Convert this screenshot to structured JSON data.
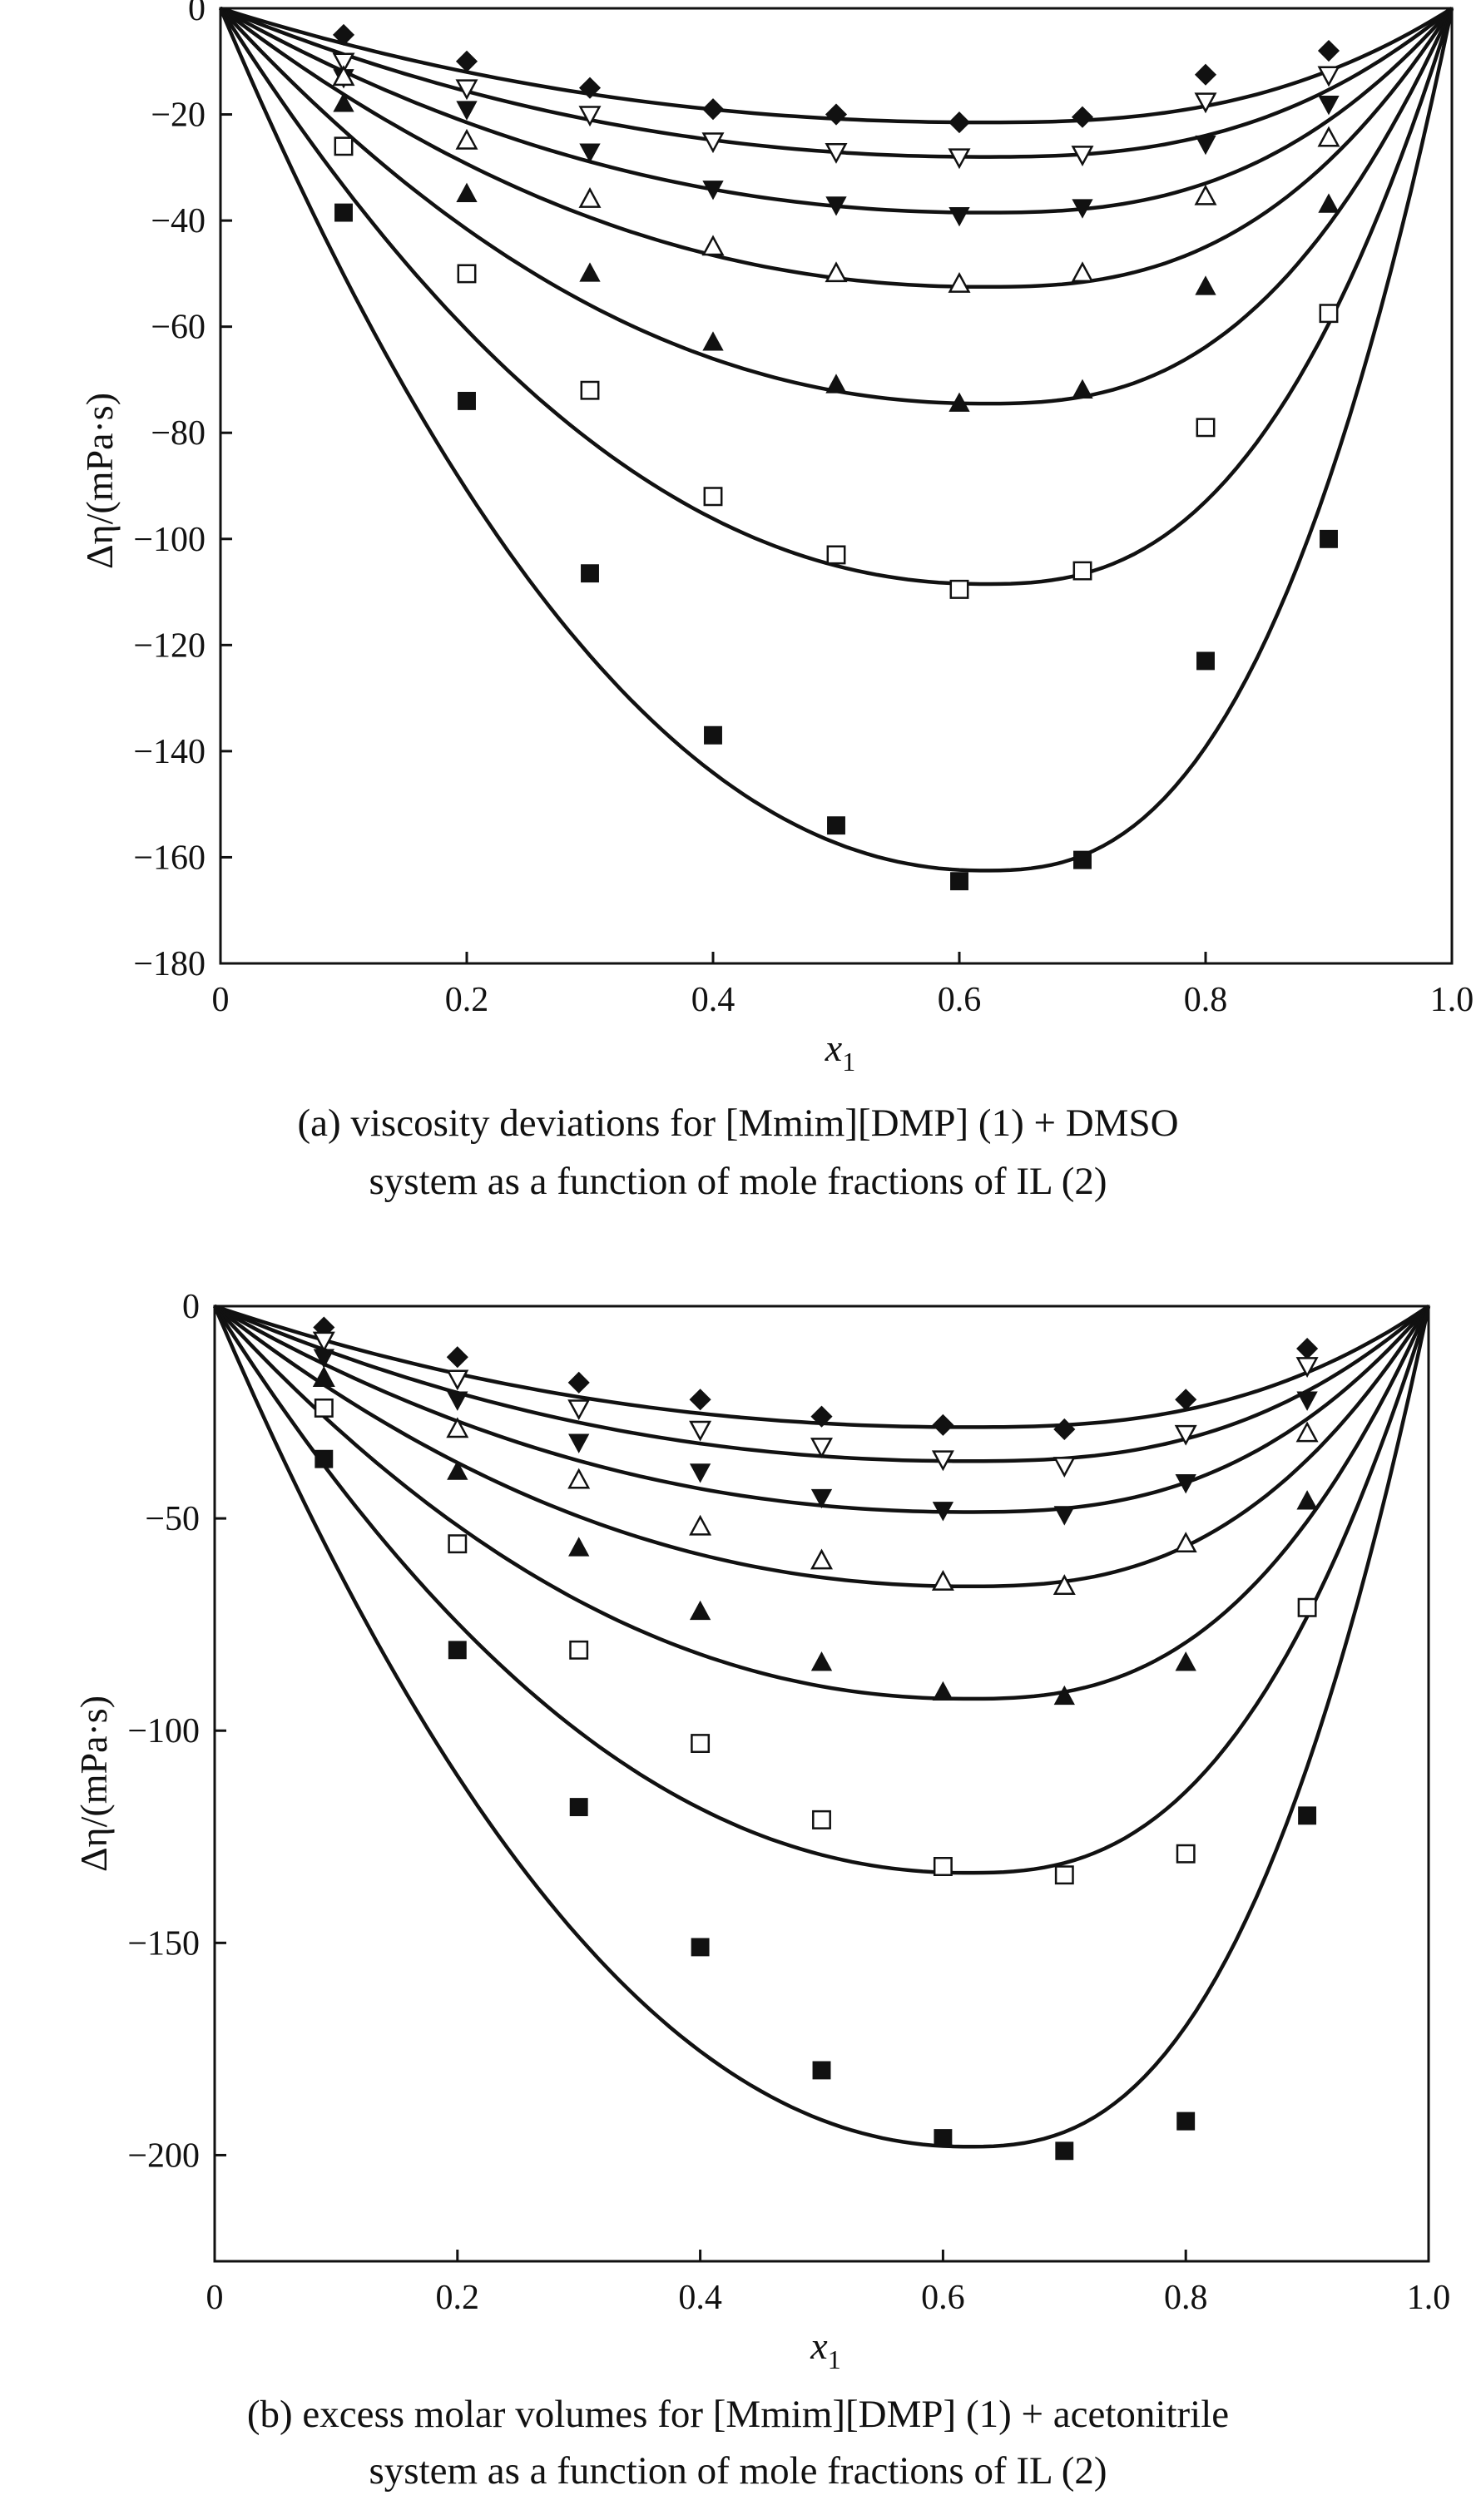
{
  "chart_data": [
    {
      "type": "line",
      "panel": "a",
      "caption": [
        "(a) viscosity deviations for [Mmim][DMP] (1) + DMSO",
        "system as a function of mole fractions of IL (2)"
      ],
      "xlabel": "x",
      "xlabel_sub": "1",
      "ylabel": "Δη/(mPa·s)",
      "xlim": [
        0,
        1.0
      ],
      "ylim": [
        -180,
        0
      ],
      "xticks": [
        0,
        0.2,
        0.4,
        0.6,
        0.8,
        1.0
      ],
      "xtick_labels": [
        "0",
        "0.2",
        "0.4",
        "0.6",
        "0.8",
        "1.0"
      ],
      "yticks": [
        0,
        -20,
        -40,
        -60,
        -80,
        -100,
        -120,
        -140,
        -160,
        -180
      ],
      "ytick_labels": [
        "0",
        "−20",
        "−40",
        "−60",
        "−80",
        "−100",
        "−120",
        "−140",
        "−160",
        "−180"
      ],
      "grid": false,
      "series": [
        {
          "marker": "diamond-filled",
          "x": [
            0.1,
            0.2,
            0.3,
            0.4,
            0.5,
            0.6,
            0.7,
            0.8,
            0.9
          ],
          "y": [
            -5,
            -10,
            -15,
            -19,
            -20,
            -21.5,
            -20.5,
            -12.5,
            -8
          ],
          "curve_min": -21.5
        },
        {
          "marker": "triangle-down-open",
          "x": [
            0.1,
            0.2,
            0.3,
            0.4,
            0.5,
            0.6,
            0.7,
            0.8,
            0.9
          ],
          "y": [
            -10,
            -15,
            -20,
            -25,
            -27,
            -28,
            -27.5,
            -17.5,
            -12.5
          ],
          "curve_min": -28
        },
        {
          "marker": "triangle-down-filled",
          "x": [
            0.1,
            0.2,
            0.3,
            0.4,
            0.5,
            0.6,
            0.7,
            0.8,
            0.9
          ],
          "y": [
            -13,
            -19,
            -27,
            -34,
            -37,
            -39,
            -37.5,
            -25.5,
            -18
          ],
          "curve_min": -38.5
        },
        {
          "marker": "triangle-up-open",
          "x": [
            0.1,
            0.2,
            0.3,
            0.4,
            0.5,
            0.6,
            0.7,
            0.8,
            0.9
          ],
          "y": [
            -13,
            -25,
            -36,
            -45,
            -50,
            -52,
            -50,
            -35.5,
            -24.5
          ],
          "curve_min": -52.5
        },
        {
          "marker": "triangle-up-filled",
          "x": [
            0.1,
            0.2,
            0.3,
            0.4,
            0.5,
            0.6,
            0.7,
            0.8,
            0.9
          ],
          "y": [
            -18,
            -35,
            -50,
            -63,
            -71,
            -74.5,
            -72,
            -52.5,
            -37
          ],
          "curve_min": -74.5
        },
        {
          "marker": "square-open",
          "x": [
            0.1,
            0.2,
            0.3,
            0.4,
            0.5,
            0.6,
            0.7,
            0.8,
            0.9
          ],
          "y": [
            -26,
            -50,
            -72,
            -92,
            -103,
            -109.5,
            -106,
            -79,
            -57.5
          ],
          "curve_min": -108.5
        },
        {
          "marker": "square-filled",
          "x": [
            0.1,
            0.2,
            0.3,
            0.4,
            0.5,
            0.6,
            0.7,
            0.8,
            0.9
          ],
          "y": [
            -38.5,
            -74,
            -106.5,
            -137,
            -154,
            -164.5,
            -160.5,
            -123,
            -100
          ],
          "curve_min": -162.5
        }
      ]
    },
    {
      "type": "line",
      "panel": "b",
      "caption": [
        "(b) excess molar volumes for [Mmim][DMP] (1) + acetonitrile",
        "system as a function of mole fractions of IL (2)"
      ],
      "xlabel": "x",
      "xlabel_sub": "1",
      "ylabel": "Δη/(mPa·s)",
      "xlim": [
        0,
        1.0
      ],
      "ylim": [
        -225,
        0
      ],
      "xticks": [
        0,
        0.2,
        0.4,
        0.6,
        0.8,
        1.0
      ],
      "xtick_labels": [
        "0",
        "0.2",
        "0.4",
        "0.6",
        "0.8",
        "1.0"
      ],
      "yticks": [
        0,
        -50,
        -100,
        -150,
        -200
      ],
      "ytick_labels": [
        "0",
        "−50",
        "−100",
        "−150",
        "−200"
      ],
      "grid": false,
      "series": [
        {
          "marker": "diamond-filled",
          "x": [
            0.09,
            0.2,
            0.3,
            0.4,
            0.5,
            0.6,
            0.7,
            0.8,
            0.9
          ],
          "y": [
            -5,
            -12,
            -18,
            -22,
            -26,
            -28,
            -29,
            -22,
            -10
          ],
          "curve_min": -28.5
        },
        {
          "marker": "triangle-down-open",
          "x": [
            0.09,
            0.2,
            0.3,
            0.4,
            0.5,
            0.6,
            0.7,
            0.8,
            0.9
          ],
          "y": [
            -8,
            -17,
            -24,
            -29,
            -33,
            -36,
            -37.5,
            -30,
            -14
          ],
          "curve_min": -36.5
        },
        {
          "marker": "triangle-down-filled",
          "x": [
            0.09,
            0.2,
            0.3,
            0.4,
            0.5,
            0.6,
            0.7,
            0.8,
            0.9
          ],
          "y": [
            -12,
            -22,
            -32,
            -39,
            -45,
            -48,
            -49,
            -41.5,
            -22
          ],
          "curve_min": -48.5
        },
        {
          "marker": "triangle-up-open",
          "x": [
            0.09,
            0.2,
            0.3,
            0.4,
            0.5,
            0.6,
            0.7,
            0.8,
            0.9
          ],
          "y": [
            -17,
            -29,
            -41,
            -52,
            -60,
            -65,
            -66,
            -56,
            -30
          ],
          "curve_min": -66
        },
        {
          "marker": "triangle-up-filled",
          "x": [
            0.09,
            0.2,
            0.3,
            0.4,
            0.5,
            0.6,
            0.7,
            0.8,
            0.9
          ],
          "y": [
            -17,
            -39,
            -57,
            -72,
            -84,
            -91,
            -92,
            -84,
            -46
          ],
          "curve_min": -92.5
        },
        {
          "marker": "square-open",
          "x": [
            0.09,
            0.2,
            0.3,
            0.4,
            0.5,
            0.6,
            0.7,
            0.8,
            0.9
          ],
          "y": [
            -24,
            -56,
            -81,
            -103,
            -121,
            -132,
            -134,
            -129,
            -71
          ],
          "curve_min": -133.5
        },
        {
          "marker": "square-filled",
          "x": [
            0.09,
            0.2,
            0.3,
            0.4,
            0.5,
            0.6,
            0.7,
            0.8,
            0.9
          ],
          "y": [
            -36,
            -81,
            -118,
            -151,
            -180,
            -196,
            -199,
            -192,
            -120
          ],
          "curve_min": -198
        }
      ]
    }
  ]
}
